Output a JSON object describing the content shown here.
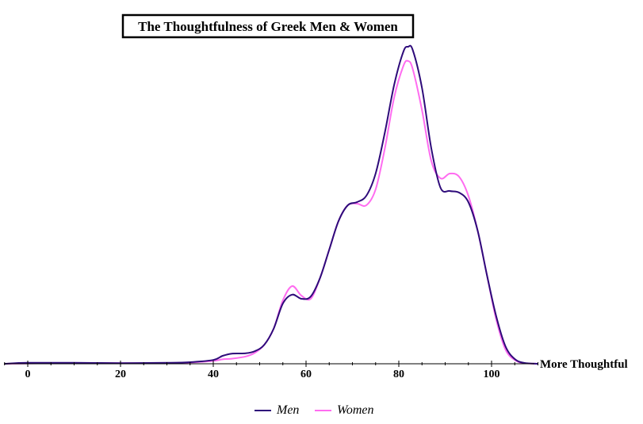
{
  "chart_data": {
    "type": "area",
    "title": "The Thoughtfulness of Greek Men & Women",
    "xlabel": "More Thoughtful",
    "ylabel": "",
    "xlim": [
      -5,
      112
    ],
    "ylim": [
      0,
      1
    ],
    "xticks": [
      0,
      20,
      40,
      60,
      80,
      100
    ],
    "grid": false,
    "legend_position": "bottom-center",
    "series": [
      {
        "name": "Men",
        "color": "#2e0b7a",
        "points": [
          [
            -5,
            0.0
          ],
          [
            0,
            0.003
          ],
          [
            10,
            0.003
          ],
          [
            20,
            0.002
          ],
          [
            30,
            0.003
          ],
          [
            35,
            0.005
          ],
          [
            40,
            0.012
          ],
          [
            42,
            0.025
          ],
          [
            44,
            0.032
          ],
          [
            47,
            0.033
          ],
          [
            49,
            0.04
          ],
          [
            51,
            0.06
          ],
          [
            53,
            0.11
          ],
          [
            55,
            0.19
          ],
          [
            57,
            0.218
          ],
          [
            59,
            0.205
          ],
          [
            61,
            0.212
          ],
          [
            63,
            0.27
          ],
          [
            65,
            0.36
          ],
          [
            67,
            0.45
          ],
          [
            69,
            0.5
          ],
          [
            71,
            0.51
          ],
          [
            73,
            0.53
          ],
          [
            75,
            0.6
          ],
          [
            77,
            0.73
          ],
          [
            79,
            0.88
          ],
          [
            81,
            0.985
          ],
          [
            82,
            1.0
          ],
          [
            83,
            0.99
          ],
          [
            85,
            0.87
          ],
          [
            87,
            0.68
          ],
          [
            89,
            0.555
          ],
          [
            91,
            0.545
          ],
          [
            93,
            0.54
          ],
          [
            95,
            0.51
          ],
          [
            97,
            0.42
          ],
          [
            99,
            0.28
          ],
          [
            101,
            0.15
          ],
          [
            103,
            0.055
          ],
          [
            105,
            0.015
          ],
          [
            107,
            0.003
          ],
          [
            110,
            0.0
          ]
        ]
      },
      {
        "name": "Women",
        "color": "#ff6cf0",
        "points": [
          [
            -5,
            0.0
          ],
          [
            0,
            0.001
          ],
          [
            10,
            0.002
          ],
          [
            20,
            0.002
          ],
          [
            30,
            0.002
          ],
          [
            35,
            0.004
          ],
          [
            40,
            0.009
          ],
          [
            42,
            0.014
          ],
          [
            44,
            0.016
          ],
          [
            47,
            0.023
          ],
          [
            49,
            0.035
          ],
          [
            51,
            0.06
          ],
          [
            53,
            0.11
          ],
          [
            55,
            0.2
          ],
          [
            57,
            0.245
          ],
          [
            59,
            0.215
          ],
          [
            61,
            0.205
          ],
          [
            63,
            0.27
          ],
          [
            65,
            0.36
          ],
          [
            67,
            0.45
          ],
          [
            69,
            0.5
          ],
          [
            71,
            0.505
          ],
          [
            73,
            0.5
          ],
          [
            75,
            0.55
          ],
          [
            77,
            0.68
          ],
          [
            79,
            0.84
          ],
          [
            81,
            0.94
          ],
          [
            82,
            0.955
          ],
          [
            83,
            0.93
          ],
          [
            85,
            0.8
          ],
          [
            87,
            0.64
          ],
          [
            89,
            0.585
          ],
          [
            91,
            0.6
          ],
          [
            93,
            0.59
          ],
          [
            95,
            0.53
          ],
          [
            97,
            0.42
          ],
          [
            99,
            0.28
          ],
          [
            101,
            0.14
          ],
          [
            103,
            0.045
          ],
          [
            105,
            0.012
          ],
          [
            107,
            0.002
          ],
          [
            110,
            0.0
          ]
        ]
      }
    ]
  }
}
